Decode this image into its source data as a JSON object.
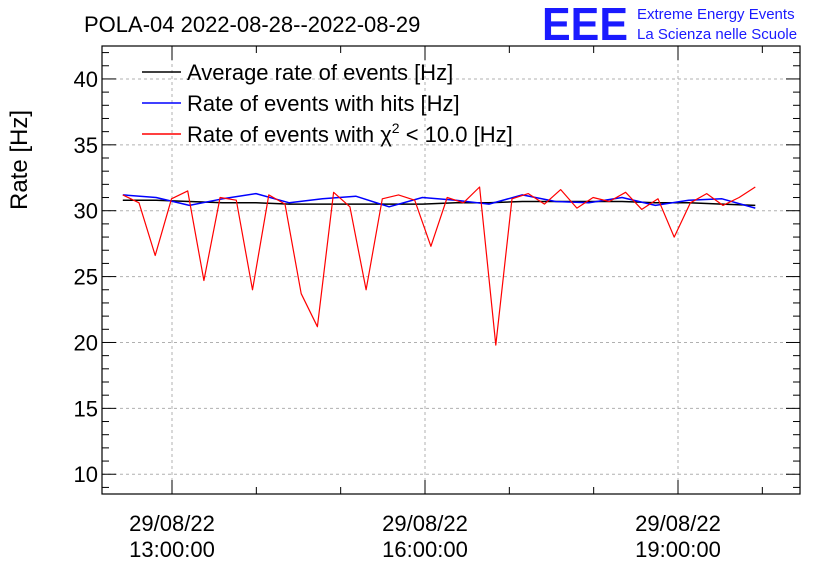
{
  "chart_data": {
    "type": "line",
    "title": "POLA-04 2022-08-28--2022-08-29",
    "ylabel": "Rate [Hz]",
    "xlabel": "",
    "ylim": [
      8.5,
      42.5
    ],
    "y_ticks": [
      10,
      15,
      20,
      25,
      30,
      35,
      40
    ],
    "x_ticks": [
      {
        "date": "29/08/22",
        "time": "13:00:00"
      },
      {
        "date": "29/08/22",
        "time": "16:00:00"
      },
      {
        "date": "29/08/22",
        "time": "19:00:00"
      }
    ],
    "grid": true,
    "legend_position": "top-left",
    "series": [
      {
        "name": "Average rate of events [Hz]",
        "color": "#000000",
        "start": "12:25",
        "end": "19:55",
        "values": [
          30.8,
          30.8,
          30.7,
          30.6,
          30.6,
          30.5,
          30.5,
          30.5,
          30.5,
          30.5,
          30.6,
          30.6,
          30.7,
          30.7,
          30.7,
          30.7,
          30.6,
          30.6,
          30.5,
          30.4
        ]
      },
      {
        "name": "Rate of events with hits [Hz]",
        "color": "#0000ff",
        "start": "12:25",
        "end": "19:55",
        "values": [
          31.2,
          31.0,
          30.4,
          30.9,
          31.3,
          30.6,
          30.9,
          31.1,
          30.3,
          31.0,
          30.8,
          30.5,
          31.2,
          30.7,
          30.6,
          31.0,
          30.4,
          30.8,
          30.9,
          30.2
        ]
      },
      {
        "name": "Rate of events with χ² < 10.0 [Hz]",
        "label_prefix": "Rate of events with ",
        "label_symbol": "χ",
        "label_sup": "2",
        "label_suffix": " < 10.0 [Hz]",
        "color": "#ff0000",
        "start": "12:25",
        "end": "19:55",
        "values": [
          31.2,
          30.6,
          26.6,
          30.9,
          31.5,
          24.7,
          31.0,
          30.8,
          24.0,
          31.2,
          30.5,
          23.7,
          21.2,
          31.4,
          30.3,
          24.0,
          30.9,
          31.2,
          30.8,
          27.3,
          31.0,
          30.6,
          31.8,
          19.8,
          30.9,
          31.3,
          30.5,
          31.6,
          30.2,
          31.0,
          30.7,
          31.4,
          30.1,
          30.9,
          28.0,
          30.6,
          31.3,
          30.4,
          31.0,
          31.8
        ]
      }
    ]
  },
  "logo": {
    "mark": "EEE",
    "line1": "Extreme Energy Events",
    "line2": "La Scienza nelle Scuole"
  }
}
